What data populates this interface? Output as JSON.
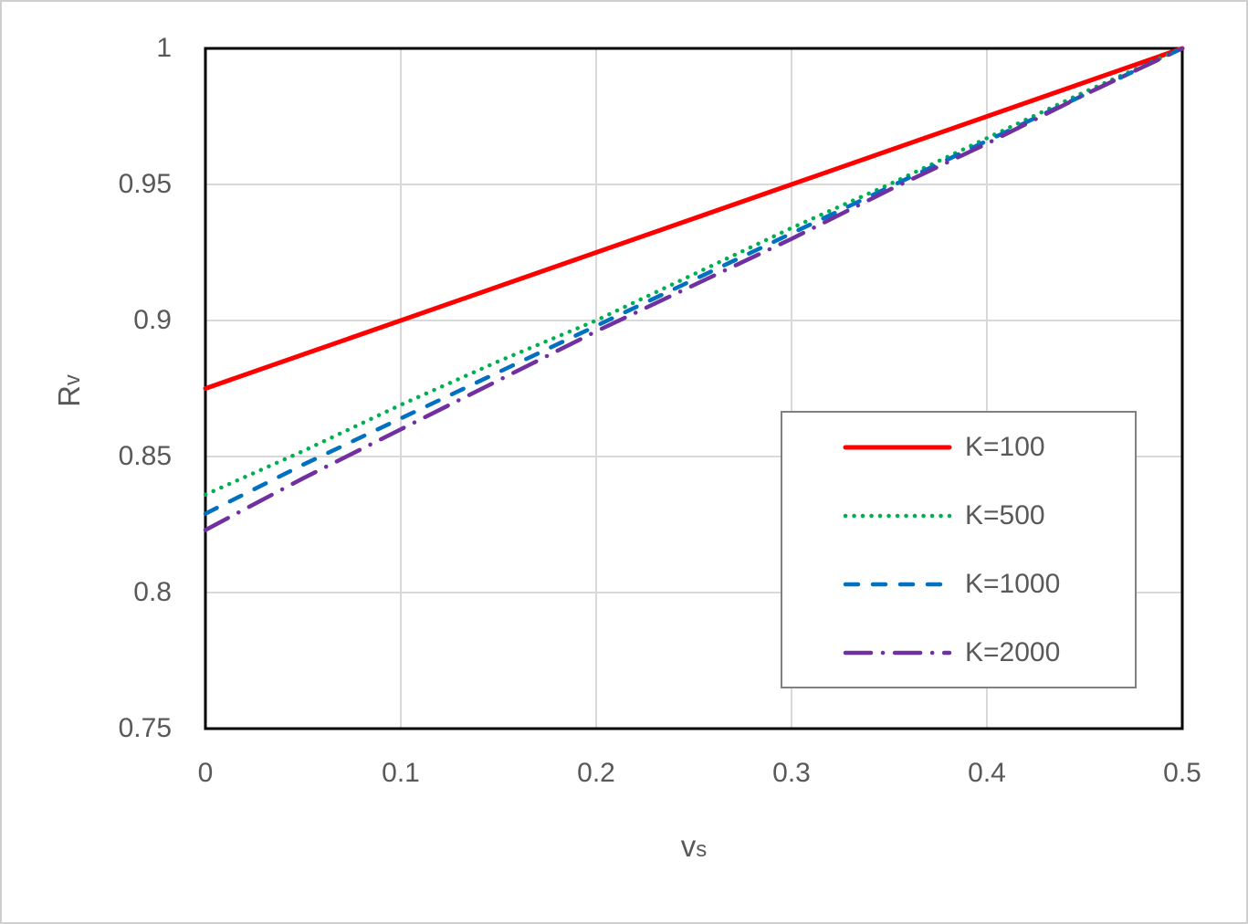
{
  "colors": {
    "text": "#595959",
    "gridline": "#D9D9D9",
    "axis_frame": "#000000",
    "legend_border": "#808080",
    "background": "#FFFFFF"
  },
  "chart_data": {
    "type": "line",
    "title": "",
    "xlabel": {
      "main": "v",
      "sub": "s"
    },
    "ylabel": {
      "main": "R",
      "sub": "v"
    },
    "xlim": [
      0,
      0.5
    ],
    "ylim": [
      0.75,
      1
    ],
    "x_ticks": [
      "0",
      "0.1",
      "0.2",
      "0.3",
      "0.4",
      "0.5"
    ],
    "y_ticks": [
      "1",
      "0.95",
      "0.9",
      "0.85",
      "0.8",
      "0.75"
    ],
    "grid": true,
    "legend_position": "middle-right",
    "x": [
      0,
      0.05,
      0.1,
      0.15,
      0.2,
      0.25,
      0.3,
      0.35,
      0.4,
      0.45,
      0.5
    ],
    "series": [
      {
        "name": "K=100",
        "color": "#FF0000",
        "style": "solid",
        "values": [
          0.875,
          0.8875,
          0.9,
          0.9125,
          0.925,
          0.9375,
          0.95,
          0.9625,
          0.975,
          0.9875,
          1.0
        ]
      },
      {
        "name": "K=500",
        "color": "#00B050",
        "style": "dotted",
        "values": [
          0.836,
          0.852,
          0.869,
          0.885,
          0.9,
          0.917,
          0.934,
          0.95,
          0.967,
          0.984,
          1.0
        ]
      },
      {
        "name": "K=1000",
        "color": "#0070C0",
        "style": "dashed",
        "values": [
          0.829,
          0.847,
          0.864,
          0.881,
          0.898,
          0.915,
          0.932,
          0.949,
          0.966,
          0.983,
          1.0
        ]
      },
      {
        "name": "K=2000",
        "color": "#7030A0",
        "style": "dashdot",
        "values": [
          0.823,
          0.842,
          0.86,
          0.878,
          0.896,
          0.913,
          0.93,
          0.948,
          0.965,
          0.983,
          1.0
        ]
      }
    ]
  }
}
